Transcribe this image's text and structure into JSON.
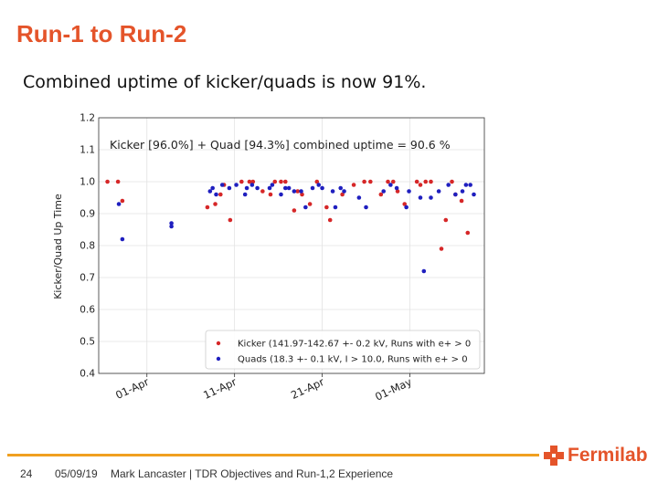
{
  "slide": {
    "title": "Run-1 to Run-2",
    "subtitle": "Combined uptime of kicker/quads is now 91%.",
    "page_number": "24",
    "date": "05/09/19",
    "credit": "Mark Lancaster | TDR Objectives and Run-1,2 Experience",
    "logo_text": "Fermilab",
    "accent_color": "#e4542a",
    "footer_line_color": "#f0a020"
  },
  "chart_data": {
    "type": "scatter",
    "title": "Kicker [96.0%] + Quad [94.3%] combined uptime = 90.6 %",
    "xlabel": "",
    "ylabel": "Kicker/Quad Up Time",
    "ylim": [
      0.4,
      1.2
    ],
    "y_ticks": [
      "0.4",
      "0.5",
      "0.6",
      "0.7",
      "0.8",
      "0.9",
      "1.0",
      "1.1",
      "1.2"
    ],
    "x_ticks": [
      {
        "label": "01-Apr",
        "day": 0
      },
      {
        "label": "11-Apr",
        "day": 10
      },
      {
        "label": "21-Apr",
        "day": 20
      },
      {
        "label": "01-May",
        "day": 30
      }
    ],
    "xlim": [
      -5.5,
      38.5
    ],
    "grid": true,
    "legend_position": "lower-right",
    "series": [
      {
        "name": "Kicker (141.97-142.67 +- 0.2 kV, Runs with e+ > 0",
        "color": "#d62728",
        "points": [
          [
            -4.5,
            1.0
          ],
          [
            -3.3,
            1.0
          ],
          [
            -2.8,
            0.94
          ],
          [
            6.9,
            0.92
          ],
          [
            7.8,
            0.93
          ],
          [
            8.4,
            0.96
          ],
          [
            8.8,
            0.99
          ],
          [
            9.5,
            0.88
          ],
          [
            10.8,
            1.0
          ],
          [
            11.7,
            1.0
          ],
          [
            12.1,
            1.0
          ],
          [
            13.2,
            0.97
          ],
          [
            14.1,
            0.96
          ],
          [
            14.6,
            1.0
          ],
          [
            15.3,
            1.0
          ],
          [
            15.8,
            1.0
          ],
          [
            16.8,
            0.91
          ],
          [
            17.2,
            0.97
          ],
          [
            17.7,
            0.96
          ],
          [
            18.6,
            0.93
          ],
          [
            19.4,
            1.0
          ],
          [
            20.5,
            0.92
          ],
          [
            20.9,
            0.88
          ],
          [
            22.3,
            0.96
          ],
          [
            23.6,
            0.99
          ],
          [
            24.8,
            1.0
          ],
          [
            25.5,
            1.0
          ],
          [
            26.7,
            0.96
          ],
          [
            27.5,
            1.0
          ],
          [
            28.1,
            1.0
          ],
          [
            28.6,
            0.97
          ],
          [
            29.4,
            0.93
          ],
          [
            30.8,
            1.0
          ],
          [
            31.2,
            0.99
          ],
          [
            31.8,
            1.0
          ],
          [
            32.4,
            1.0
          ],
          [
            33.6,
            0.79
          ],
          [
            34.1,
            0.88
          ],
          [
            34.8,
            1.0
          ],
          [
            35.2,
            0.96
          ],
          [
            35.9,
            0.94
          ],
          [
            36.6,
            0.84
          ]
        ]
      },
      {
        "name": "Quads (18.3 +- 0.1 kV, I > 10.0, Runs with e+ > 0",
        "color": "#1f1fbf",
        "points": [
          [
            -3.2,
            0.93
          ],
          [
            -2.8,
            0.82
          ],
          [
            2.8,
            0.87
          ],
          [
            2.8,
            0.86
          ],
          [
            7.2,
            0.97
          ],
          [
            7.5,
            0.98
          ],
          [
            7.9,
            0.96
          ],
          [
            8.6,
            0.99
          ],
          [
            9.4,
            0.98
          ],
          [
            10.2,
            0.99
          ],
          [
            11.2,
            0.96
          ],
          [
            11.4,
            0.98
          ],
          [
            12.0,
            0.99
          ],
          [
            12.6,
            0.98
          ],
          [
            14.0,
            0.98
          ],
          [
            14.3,
            0.99
          ],
          [
            15.3,
            0.96
          ],
          [
            15.8,
            0.98
          ],
          [
            16.2,
            0.98
          ],
          [
            16.8,
            0.97
          ],
          [
            17.6,
            0.97
          ],
          [
            18.1,
            0.92
          ],
          [
            18.9,
            0.98
          ],
          [
            19.6,
            0.99
          ],
          [
            20.0,
            0.98
          ],
          [
            21.2,
            0.97
          ],
          [
            21.5,
            0.92
          ],
          [
            22.1,
            0.98
          ],
          [
            22.5,
            0.97
          ],
          [
            24.2,
            0.95
          ],
          [
            25.0,
            0.92
          ],
          [
            27.0,
            0.97
          ],
          [
            27.8,
            0.99
          ],
          [
            28.5,
            0.98
          ],
          [
            29.6,
            0.92
          ],
          [
            29.9,
            0.97
          ],
          [
            31.2,
            0.95
          ],
          [
            31.6,
            0.72
          ],
          [
            32.4,
            0.95
          ],
          [
            33.3,
            0.97
          ],
          [
            34.4,
            0.99
          ],
          [
            35.2,
            0.96
          ],
          [
            36.0,
            0.97
          ],
          [
            36.4,
            0.99
          ],
          [
            36.9,
            0.99
          ],
          [
            37.3,
            0.96
          ]
        ]
      }
    ]
  }
}
